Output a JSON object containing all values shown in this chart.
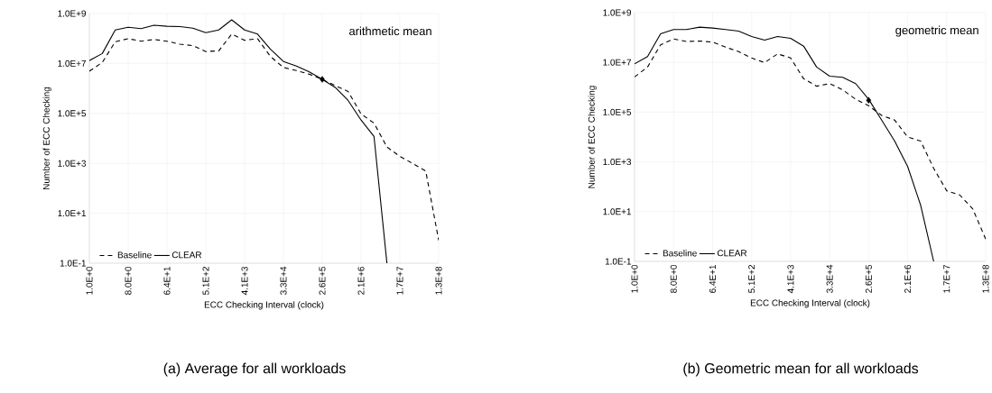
{
  "chart_data": [
    {
      "type": "line",
      "title": "(a) Average for all workloads",
      "xlabel": "ECC Checking Interval (clock)",
      "ylabel": "Number of ECC Checking",
      "annotations": [
        "arithmetic mean"
      ],
      "categories": [
        "1.0E+0",
        null,
        null,
        "8.0E+0",
        null,
        null,
        "6.4E+1",
        null,
        null,
        "5.1E+2",
        null,
        null,
        "4.1E+3",
        null,
        null,
        "3.3E+4",
        null,
        null,
        "2.6E+5",
        null,
        null,
        "2.1E+6",
        null,
        null,
        "1.7E+7",
        null,
        null,
        "1.3E+8"
      ],
      "series": [
        {
          "name": "Baseline",
          "color": "#000000",
          "line_style": "dashed",
          "values": [
            4900000.0,
            11000000.0,
            74000000.0,
            98000000.0,
            78000000.0,
            91000000.0,
            78000000.0,
            59000000.0,
            52000000.0,
            30000000.0,
            32000000.0,
            150000000.0,
            85000000.0,
            98000000.0,
            19000000.0,
            6900000.0,
            5200000.0,
            3700000.0,
            2300000.0,
            1300000.0,
            760000.0,
            95000.0,
            41000.0,
            4500.0,
            1900.0,
            980,
            490,
            0.83
          ]
        },
        {
          "name": "CLEAR",
          "color": "#000000",
          "line_style": "solid",
          "values": [
            13000000.0,
            25000000.0,
            220000000.0,
            280000000.0,
            250000000.0,
            340000000.0,
            310000000.0,
            300000000.0,
            260000000.0,
            170000000.0,
            220000000.0,
            560000000.0,
            220000000.0,
            150000000.0,
            37000000.0,
            12000000.0,
            7900000.0,
            4600000.0,
            2300000.0,
            1100000.0,
            330000.0,
            54000.0,
            12000.0,
            0.1,
            null,
            null,
            null,
            null
          ]
        },
        {
          "type": "scatter",
          "marker": "diamond",
          "color": "#000000",
          "x": [
            "2.6E+5"
          ],
          "values": [
            2300000.0
          ]
        }
      ],
      "ylim": [
        0.1,
        1000000000.0
      ],
      "yticks": [
        {
          "value": 0.1,
          "label": "1.0E-1"
        },
        {
          "value": 10,
          "label": "1.0E+1"
        },
        {
          "value": 1000,
          "label": "1.0E+3"
        },
        {
          "value": 100000.0,
          "label": "1.0E+5"
        },
        {
          "value": 10000000.0,
          "label": "1.0E+7"
        },
        {
          "value": 1000000000.0,
          "label": "1.0E+9"
        }
      ],
      "log": "y",
      "grid": true,
      "legend": "bottom left"
    },
    {
      "type": "line",
      "title": "(b) Geometric mean for all workloads",
      "xlabel": "ECC Checking Interval (clock)",
      "ylabel": "Number of ECC Checking",
      "annotations": [
        "geometric mean"
      ],
      "categories": [
        "1.0E+0",
        null,
        null,
        "8.0E+0",
        null,
        null,
        "6.4E+1",
        null,
        null,
        "5.1E+2",
        null,
        null,
        "4.1E+3",
        null,
        null,
        "3.3E+4",
        null,
        null,
        "2.6E+5",
        null,
        null,
        "2.1E+6",
        null,
        null,
        "1.7E+7",
        null,
        null,
        "1.3E+8"
      ],
      "series": [
        {
          "name": "Baseline",
          "color": "#000000",
          "line_style": "dashed",
          "values": [
            2600000.0,
            6500000.0,
            51000000.0,
            87000000.0,
            69000000.0,
            72000000.0,
            65000000.0,
            41000000.0,
            27000000.0,
            15000000.0,
            9800000.0,
            22000000.0,
            15000000.0,
            2200000.0,
            1100000.0,
            1400000.0,
            790000.0,
            330000.0,
            180000.0,
            74000.0,
            48000.0,
            10000.0,
            6900.0,
            550,
            69,
            47,
            13,
            0.79
          ]
        },
        {
          "name": "CLEAR",
          "color": "#000000",
          "line_style": "solid",
          "values": [
            8700000.0,
            17000000.0,
            140000000.0,
            210000000.0,
            210000000.0,
            260000000.0,
            240000000.0,
            210000000.0,
            180000000.0,
            110000000.0,
            79000000.0,
            110000000.0,
            93000000.0,
            45000000.0,
            6500000.0,
            2800000.0,
            2500000.0,
            1400000.0,
            330000.0,
            48000.0,
            6900.0,
            650,
            18,
            0.1,
            null,
            null,
            null,
            null
          ]
        },
        {
          "type": "scatter",
          "marker": "diamond",
          "color": "#000000",
          "x": [
            "2.6E+5"
          ],
          "values": [
            300000.0
          ]
        }
      ],
      "ylim": [
        0.1,
        1000000000.0
      ],
      "yticks": [
        {
          "value": 0.1,
          "label": "1.0E-1"
        },
        {
          "value": 10,
          "label": "1.0E+1"
        },
        {
          "value": 1000,
          "label": "1.0E+3"
        },
        {
          "value": 100000.0,
          "label": "1.0E+5"
        },
        {
          "value": 10000000.0,
          "label": "1.0E+7"
        },
        {
          "value": 1000000000.0,
          "label": "1.0E+9"
        }
      ],
      "log": "y",
      "grid": true,
      "legend": "bottom left"
    }
  ]
}
